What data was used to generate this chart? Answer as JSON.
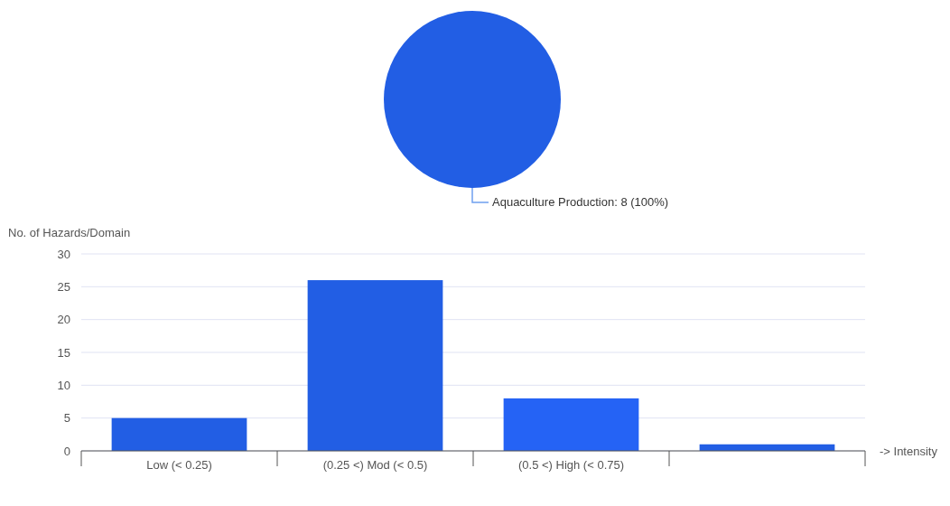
{
  "chart_data": [
    {
      "type": "pie",
      "categories": [
        "Aquaculture Production"
      ],
      "values": [
        8
      ],
      "colors": [
        "#225ee4"
      ],
      "value_labels": [
        ": 8 (100%)"
      ]
    },
    {
      "type": "bar",
      "categories": [
        "Low (< 0.25)",
        "(0.25 <) Mod (< 0.5)",
        "(0.5 <) High (< 0.75)",
        null
      ],
      "values": [
        5,
        26,
        8,
        1
      ],
      "colors": [
        "#225ee4",
        "#225ee4",
        "#2563f5",
        "#225ee4"
      ],
      "xlabel": "-> Intensity",
      "ylabel": "No. of Hazards/Domain",
      "ylim": [
        0,
        30
      ],
      "yticks": [
        0,
        5,
        10,
        15,
        20,
        25,
        30
      ],
      "grid": "y"
    }
  ]
}
